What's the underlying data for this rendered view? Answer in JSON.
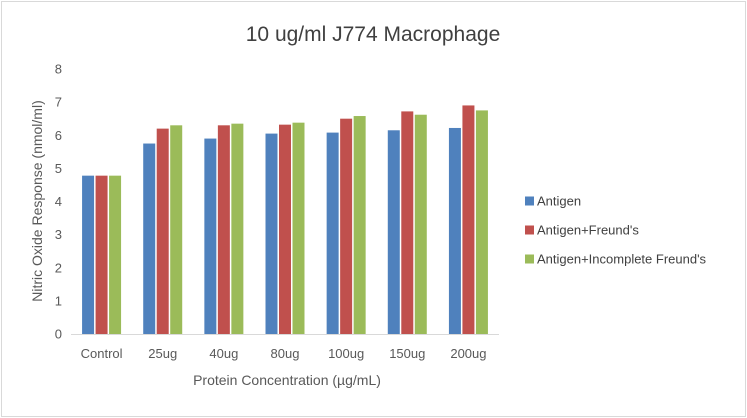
{
  "chart_data": {
    "type": "bar",
    "title": "10 ug/ml  J774 Macrophage",
    "xlabel": "Protein Concentration (µg/mL)",
    "ylabel": "Nitric Oxide Response (nmol/ml)",
    "ylim": [
      0,
      8
    ],
    "yticks": [
      "0",
      "1",
      "2",
      "3",
      "4",
      "5",
      "6",
      "7",
      "8"
    ],
    "categories": [
      "Control",
      "25ug",
      "40ug",
      "80ug",
      "100ug",
      "150ug",
      "200ug"
    ],
    "series": [
      {
        "name": "Antigen",
        "color": "#4f81bd",
        "values": [
          4.78,
          5.75,
          5.9,
          6.05,
          6.08,
          6.15,
          6.22
        ]
      },
      {
        "name": "Antigen+Freund's",
        "color": "#c0504d",
        "values": [
          4.78,
          6.2,
          6.3,
          6.32,
          6.5,
          6.72,
          6.9
        ]
      },
      {
        "name": "Antigen+Incomplete Freund's",
        "color": "#9bbb59",
        "values": [
          4.78,
          6.3,
          6.35,
          6.38,
          6.58,
          6.62,
          6.75
        ]
      }
    ],
    "grid": false,
    "legend": "right"
  }
}
